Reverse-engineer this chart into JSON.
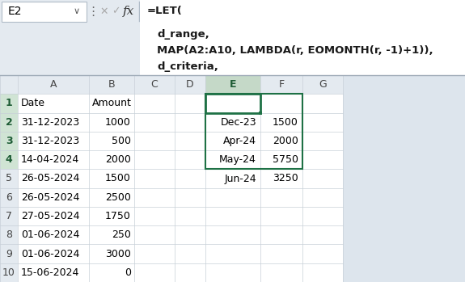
{
  "formula_bar": {
    "cell_ref": "E2",
    "formula_lines": [
      "=LET(",
      "    d_range,",
      "    MAP(A2:A10, LAMBDA(r, EOMONTH(r, -1)+1)),",
      "    d_criteria,"
    ]
  },
  "col_headers": [
    "",
    "A",
    "B",
    "C",
    "D",
    "E",
    "F",
    "G"
  ],
  "col_A": [
    "Date",
    "31-12-2023",
    "31-12-2023",
    "14-04-2024",
    "26-05-2024",
    "26-05-2024",
    "27-05-2024",
    "01-06-2024",
    "01-06-2024",
    "15-06-2024"
  ],
  "col_B": [
    "Amount",
    "1000",
    "500",
    "2000",
    "1500",
    "2500",
    "1750",
    "250",
    "3000",
    "0"
  ],
  "col_E": [
    "",
    "Dec-23",
    "Apr-24",
    "May-24",
    "Jun-24",
    "",
    "",
    "",
    "",
    ""
  ],
  "col_F": [
    "",
    "1500",
    "2000",
    "5750",
    "3250",
    "",
    "",
    "",
    "",
    ""
  ],
  "bg_color": "#dde5ed",
  "formula_bar_bg": "#e4eaf0",
  "header_row_color": "#e4eaf0",
  "cell_bg": "#ffffff",
  "selected_col_header_bg": "#c5d9c8",
  "selected_col_header_fg": "#1e5c35",
  "selected_cell_border": "#1e7145",
  "grid_color": "#c8d0d8",
  "row_num_col_bg": "#e4eaf0",
  "row_num_selected_bg": "#d0e4d4",
  "header_text_color": "#444444",
  "normal_text_color": "#000000",
  "formula_text_color": "#1a1a1a"
}
